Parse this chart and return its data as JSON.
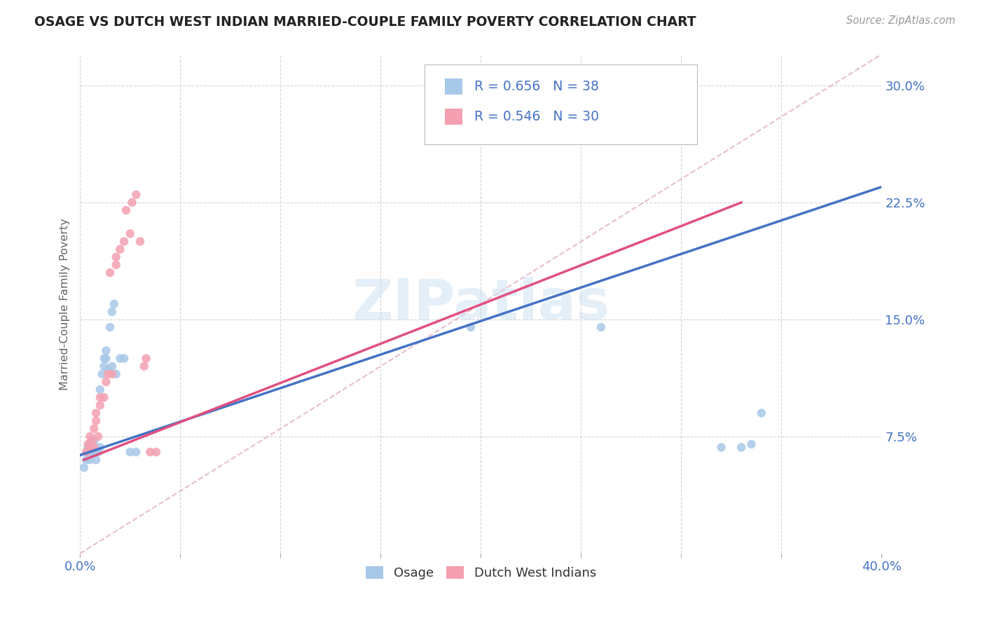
{
  "title": "OSAGE VS DUTCH WEST INDIAN MARRIED-COUPLE FAMILY POVERTY CORRELATION CHART",
  "source": "Source: ZipAtlas.com",
  "ylabel": "Married-Couple Family Poverty",
  "xlim": [
    0.0,
    0.4
  ],
  "ylim": [
    0.0,
    0.32
  ],
  "xticks": [
    0.0,
    0.05,
    0.1,
    0.15,
    0.2,
    0.25,
    0.3,
    0.35,
    0.4
  ],
  "xticklabels": [
    "0.0%",
    "",
    "",
    "",
    "",
    "",
    "",
    "",
    "40.0%"
  ],
  "yticks": [
    0.0,
    0.075,
    0.15,
    0.225,
    0.3
  ],
  "yticklabels": [
    "",
    "7.5%",
    "15.0%",
    "22.5%",
    "30.0%"
  ],
  "watermark": "ZIPatlas",
  "legend_blue_R": "0.656",
  "legend_blue_N": "38",
  "legend_pink_R": "0.546",
  "legend_pink_N": "30",
  "legend_label1": "Osage",
  "legend_label2": "Dutch West Indians",
  "blue_color": "#a8c8e8",
  "pink_color": "#f4a0b0",
  "line_blue_color": "#4472c4",
  "line_pink_color": "#e05080",
  "dashed_line_color": "#e0b0c0",
  "grid_color": "#d0d0d0",
  "axis_label_color": "#4472c4",
  "title_color": "#222222",
  "osage_x": [
    0.002,
    0.003,
    0.004,
    0.004,
    0.005,
    0.005,
    0.005,
    0.006,
    0.006,
    0.007,
    0.007,
    0.007,
    0.008,
    0.008,
    0.009,
    0.01,
    0.01,
    0.011,
    0.012,
    0.012,
    0.013,
    0.013,
    0.014,
    0.015,
    0.016,
    0.016,
    0.017,
    0.018,
    0.02,
    0.022,
    0.025,
    0.028,
    0.195,
    0.26,
    0.32,
    0.33,
    0.335,
    0.34
  ],
  "osage_y": [
    0.055,
    0.06,
    0.065,
    0.068,
    0.06,
    0.065,
    0.07,
    0.065,
    0.068,
    0.072,
    0.068,
    0.065,
    0.06,
    0.065,
    0.065,
    0.068,
    0.105,
    0.115,
    0.12,
    0.125,
    0.125,
    0.13,
    0.118,
    0.145,
    0.12,
    0.155,
    0.16,
    0.115,
    0.125,
    0.125,
    0.065,
    0.065,
    0.145,
    0.145,
    0.068,
    0.068,
    0.07,
    0.09
  ],
  "dutch_x": [
    0.003,
    0.004,
    0.005,
    0.005,
    0.006,
    0.007,
    0.007,
    0.008,
    0.008,
    0.009,
    0.01,
    0.01,
    0.012,
    0.013,
    0.014,
    0.015,
    0.016,
    0.018,
    0.018,
    0.02,
    0.022,
    0.023,
    0.025,
    0.026,
    0.028,
    0.03,
    0.032,
    0.033,
    0.035,
    0.038
  ],
  "dutch_y": [
    0.065,
    0.07,
    0.068,
    0.075,
    0.072,
    0.068,
    0.08,
    0.085,
    0.09,
    0.075,
    0.095,
    0.1,
    0.1,
    0.11,
    0.115,
    0.18,
    0.115,
    0.185,
    0.19,
    0.195,
    0.2,
    0.22,
    0.205,
    0.225,
    0.23,
    0.2,
    0.12,
    0.125,
    0.065,
    0.065
  ],
  "blue_trendline_x": [
    0.0,
    0.4
  ],
  "blue_trendline_y": [
    0.063,
    0.235
  ],
  "pink_trendline_x": [
    0.002,
    0.33
  ],
  "pink_trendline_y": [
    0.06,
    0.225
  ],
  "dashed_line_x": [
    0.0,
    0.4
  ],
  "dashed_line_y": [
    0.0,
    0.32
  ]
}
